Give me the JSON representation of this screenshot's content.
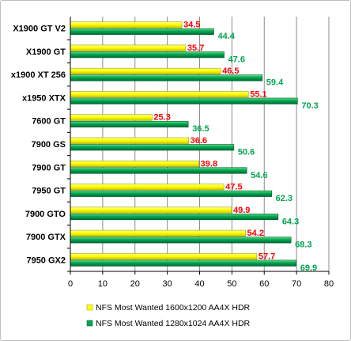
{
  "chart_data": {
    "type": "bar",
    "orientation": "horizontal",
    "categories": [
      "X1900 GT V2",
      "X1900 GT",
      "x1900 XT 256",
      "x1950 XTX",
      "7600 GT",
      "7900 GS",
      "7900 GT",
      "7950 GT",
      "7900 GTO",
      "7900 GTX",
      "7950 GX2"
    ],
    "series": [
      {
        "name": "NFS Most Wanted 1600x1200 AA4X HDR",
        "color": "#ffff00",
        "label_color": "#ff0000",
        "values": [
          34.5,
          35.7,
          46.5,
          55.1,
          25.3,
          36.6,
          39.8,
          47.5,
          49.9,
          54.2,
          57.7
        ]
      },
      {
        "name": "NFS Most Wanted 1280x1024 AA4X HDR",
        "color": "#00a651",
        "label_color": "#00a651",
        "values": [
          44.4,
          47.6,
          59.4,
          70.3,
          36.5,
          50.6,
          54.6,
          62.3,
          64.3,
          68.3,
          69.9
        ]
      }
    ],
    "xlim": [
      0,
      80
    ],
    "xticks": [
      0,
      10,
      20,
      30,
      40,
      50,
      60,
      70,
      80
    ],
    "grid": true,
    "legend_position": "bottom",
    "title": "",
    "xlabel": "",
    "ylabel": ""
  }
}
